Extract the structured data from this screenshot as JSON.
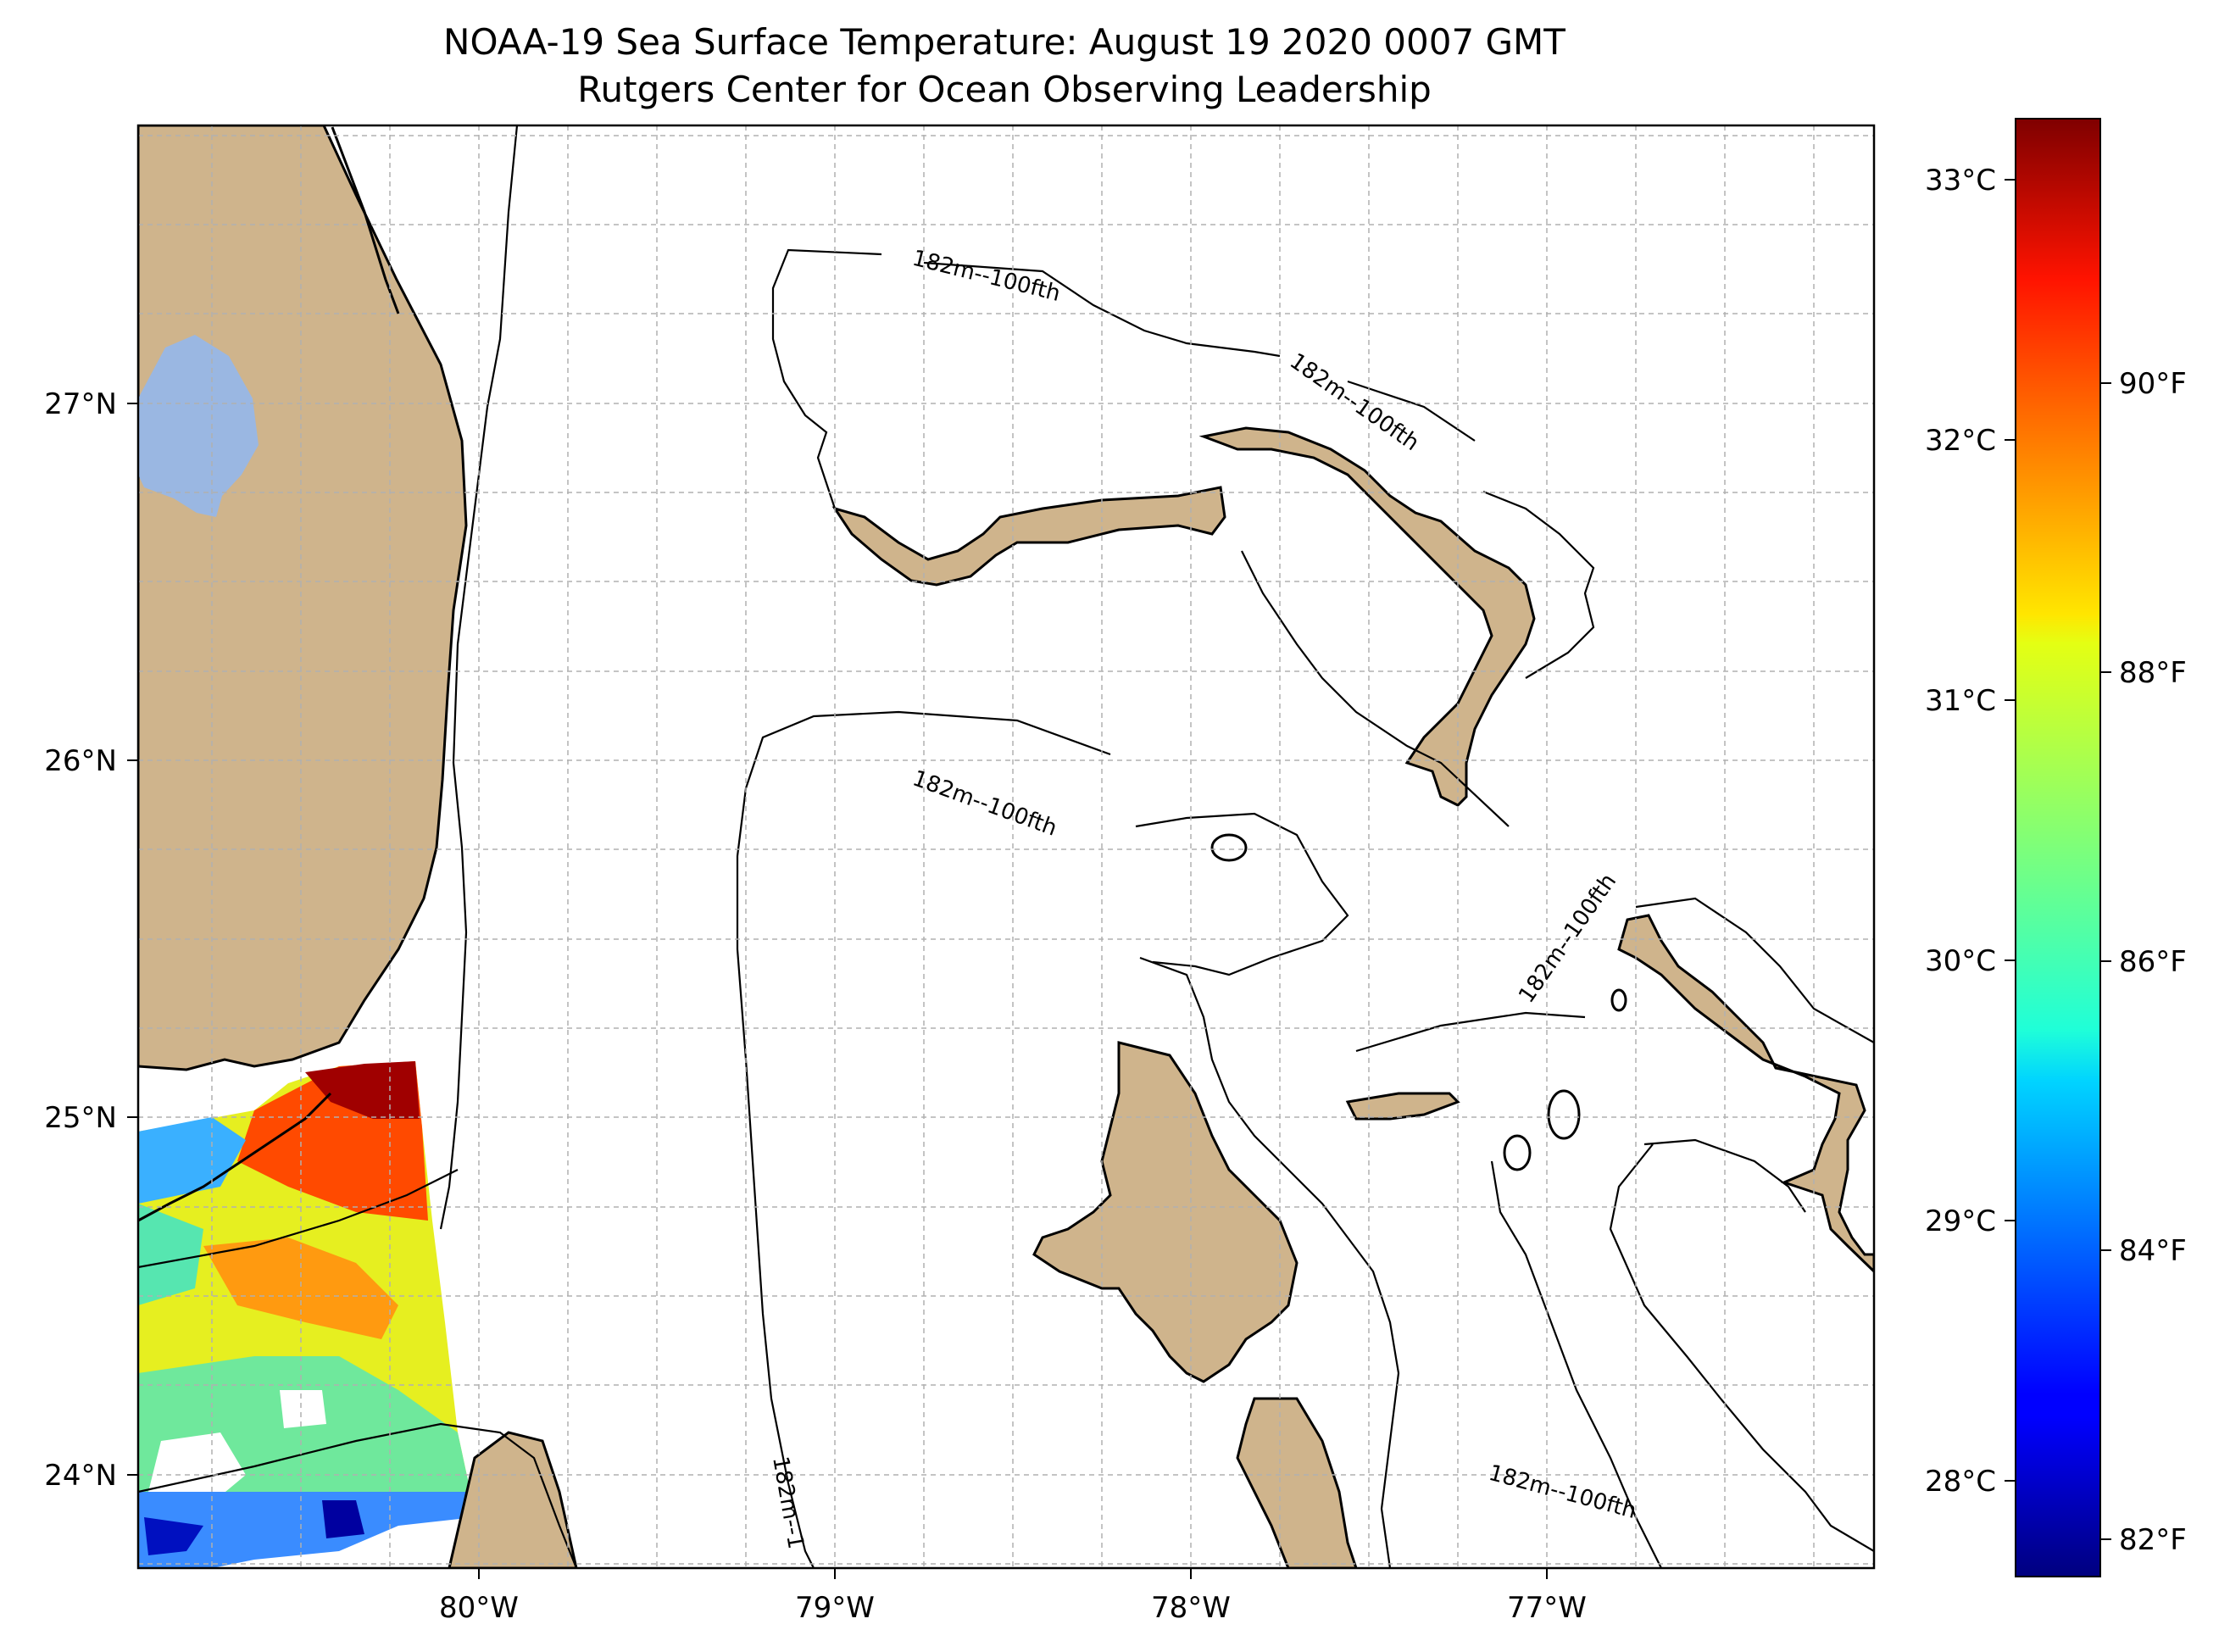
{
  "title": "NOAA-19 Sea Surface Temperature: August 19 2020 0007 GMT",
  "subtitle": "Rutgers Center for Ocean Observing Leadership",
  "axes": {
    "lat_labels": [
      "27°N",
      "26°N",
      "25°N",
      "24°N"
    ],
    "lon_labels": [
      "80°W",
      "79°W",
      "78°W",
      "77°W"
    ]
  },
  "colorbar": {
    "celsius_labels": [
      "33°C",
      "32°C",
      "31°C",
      "30°C",
      "29°C",
      "28°C"
    ],
    "fahrenheit_labels": [
      "90°F",
      "88°F",
      "86°F",
      "84°F",
      "82°F"
    ],
    "colormap": "jet",
    "range_celsius": [
      27.6,
      33.2
    ]
  },
  "contour_label": "182m--100fth",
  "contour_label_truncated": "182m--1",
  "colors": {
    "land": "#cfb48c",
    "lake": "#9ab7e2",
    "coast": "#000000",
    "grid": "#b0b0b0"
  }
}
